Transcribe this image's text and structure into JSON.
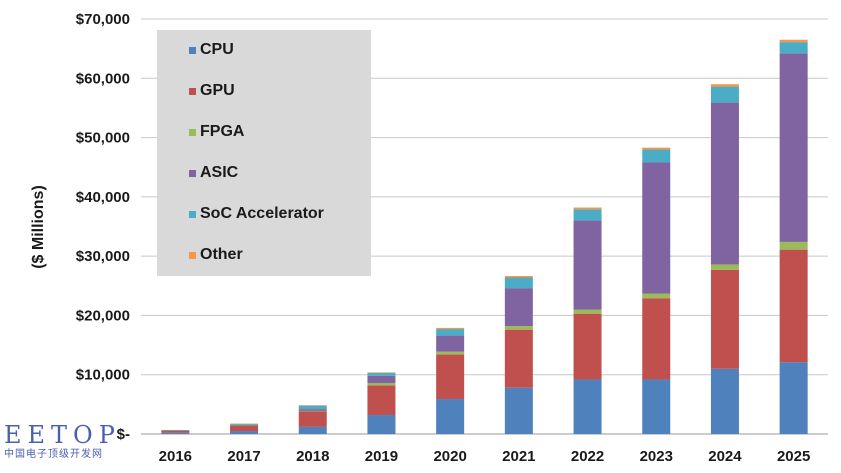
{
  "chart_data": {
    "type": "bar",
    "stacked": true,
    "title": "",
    "xlabel": "",
    "ylabel": "($ Millions)",
    "ylim": [
      0,
      70000
    ],
    "yticks": [
      0,
      10000,
      20000,
      30000,
      40000,
      50000,
      60000,
      70000
    ],
    "ytick_labels": [
      "$-",
      "$10,000",
      "$20,000",
      "$30,000",
      "$40,000",
      "$50,000",
      "$60,000",
      "$70,000"
    ],
    "grid": "horizontal",
    "legend_position": "top-left",
    "categories": [
      "2016",
      "2017",
      "2018",
      "2019",
      "2020",
      "2021",
      "2022",
      "2023",
      "2024",
      "2025"
    ],
    "series": [
      {
        "name": "CPU",
        "color": "#4f81bd",
        "values": [
          200,
          500,
          1200,
          3200,
          5900,
          7800,
          9200,
          9200,
          11000,
          12100
        ]
      },
      {
        "name": "GPU",
        "color": "#c0504d",
        "values": [
          400,
          900,
          2600,
          5000,
          7500,
          9800,
          11100,
          13700,
          16700,
          19000
        ]
      },
      {
        "name": "FPGA",
        "color": "#9bbb59",
        "values": [
          20,
          30,
          100,
          400,
          500,
          600,
          700,
          800,
          900,
          1300
        ]
      },
      {
        "name": "ASIC",
        "color": "#8064a2",
        "values": [
          20,
          100,
          300,
          1200,
          2700,
          6400,
          15000,
          22100,
          27300,
          31800
        ]
      },
      {
        "name": "SoC Accelerator",
        "color": "#4bacc6",
        "values": [
          10,
          200,
          600,
          500,
          1100,
          1800,
          1900,
          2200,
          2700,
          1900
        ]
      },
      {
        "name": "Other",
        "color": "#f79646",
        "values": [
          0,
          20,
          50,
          100,
          200,
          250,
          300,
          300,
          400,
          400
        ]
      }
    ]
  },
  "watermark": {
    "logo": "EETOP",
    "subtitle": "中国电子顶级开发网"
  }
}
